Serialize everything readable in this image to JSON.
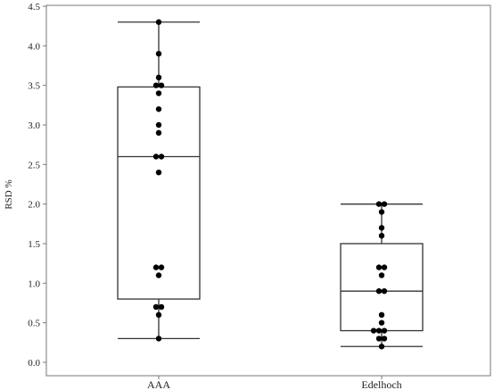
{
  "chart_data": {
    "type": "box",
    "title": "",
    "xlabel": "",
    "ylabel": "RSD %",
    "ylim": [
      0,
      4.5
    ],
    "yticks": [
      "0.0",
      "0.5",
      "1.0",
      "1.5",
      "2.0",
      "2.5",
      "3.0",
      "3.5",
      "4.0",
      "4.5"
    ],
    "grid": false,
    "categories": [
      "AAA",
      "Edelhoch"
    ],
    "boxes": [
      {
        "category": "AAA",
        "whisker_low": 0.3,
        "q1": 0.8,
        "median": 2.6,
        "q3": 3.48,
        "whisker_high": 4.3,
        "points": [
          4.3,
          3.9,
          3.6,
          3.5,
          3.5,
          3.4,
          3.2,
          3.0,
          2.9,
          2.6,
          2.6,
          2.4,
          1.2,
          1.2,
          1.1,
          0.7,
          0.7,
          0.6,
          0.3
        ]
      },
      {
        "category": "Edelhoch",
        "whisker_low": 0.2,
        "q1": 0.4,
        "median": 0.9,
        "q3": 1.5,
        "whisker_high": 2.0,
        "points": [
          2.0,
          2.0,
          1.9,
          1.7,
          1.6,
          1.2,
          1.2,
          1.1,
          0.9,
          0.9,
          0.6,
          0.5,
          0.4,
          0.4,
          0.4,
          0.3,
          0.3,
          0.2
        ]
      }
    ],
    "colors": {
      "box": "#333333",
      "points": "#000000",
      "frame": "#777777"
    }
  }
}
